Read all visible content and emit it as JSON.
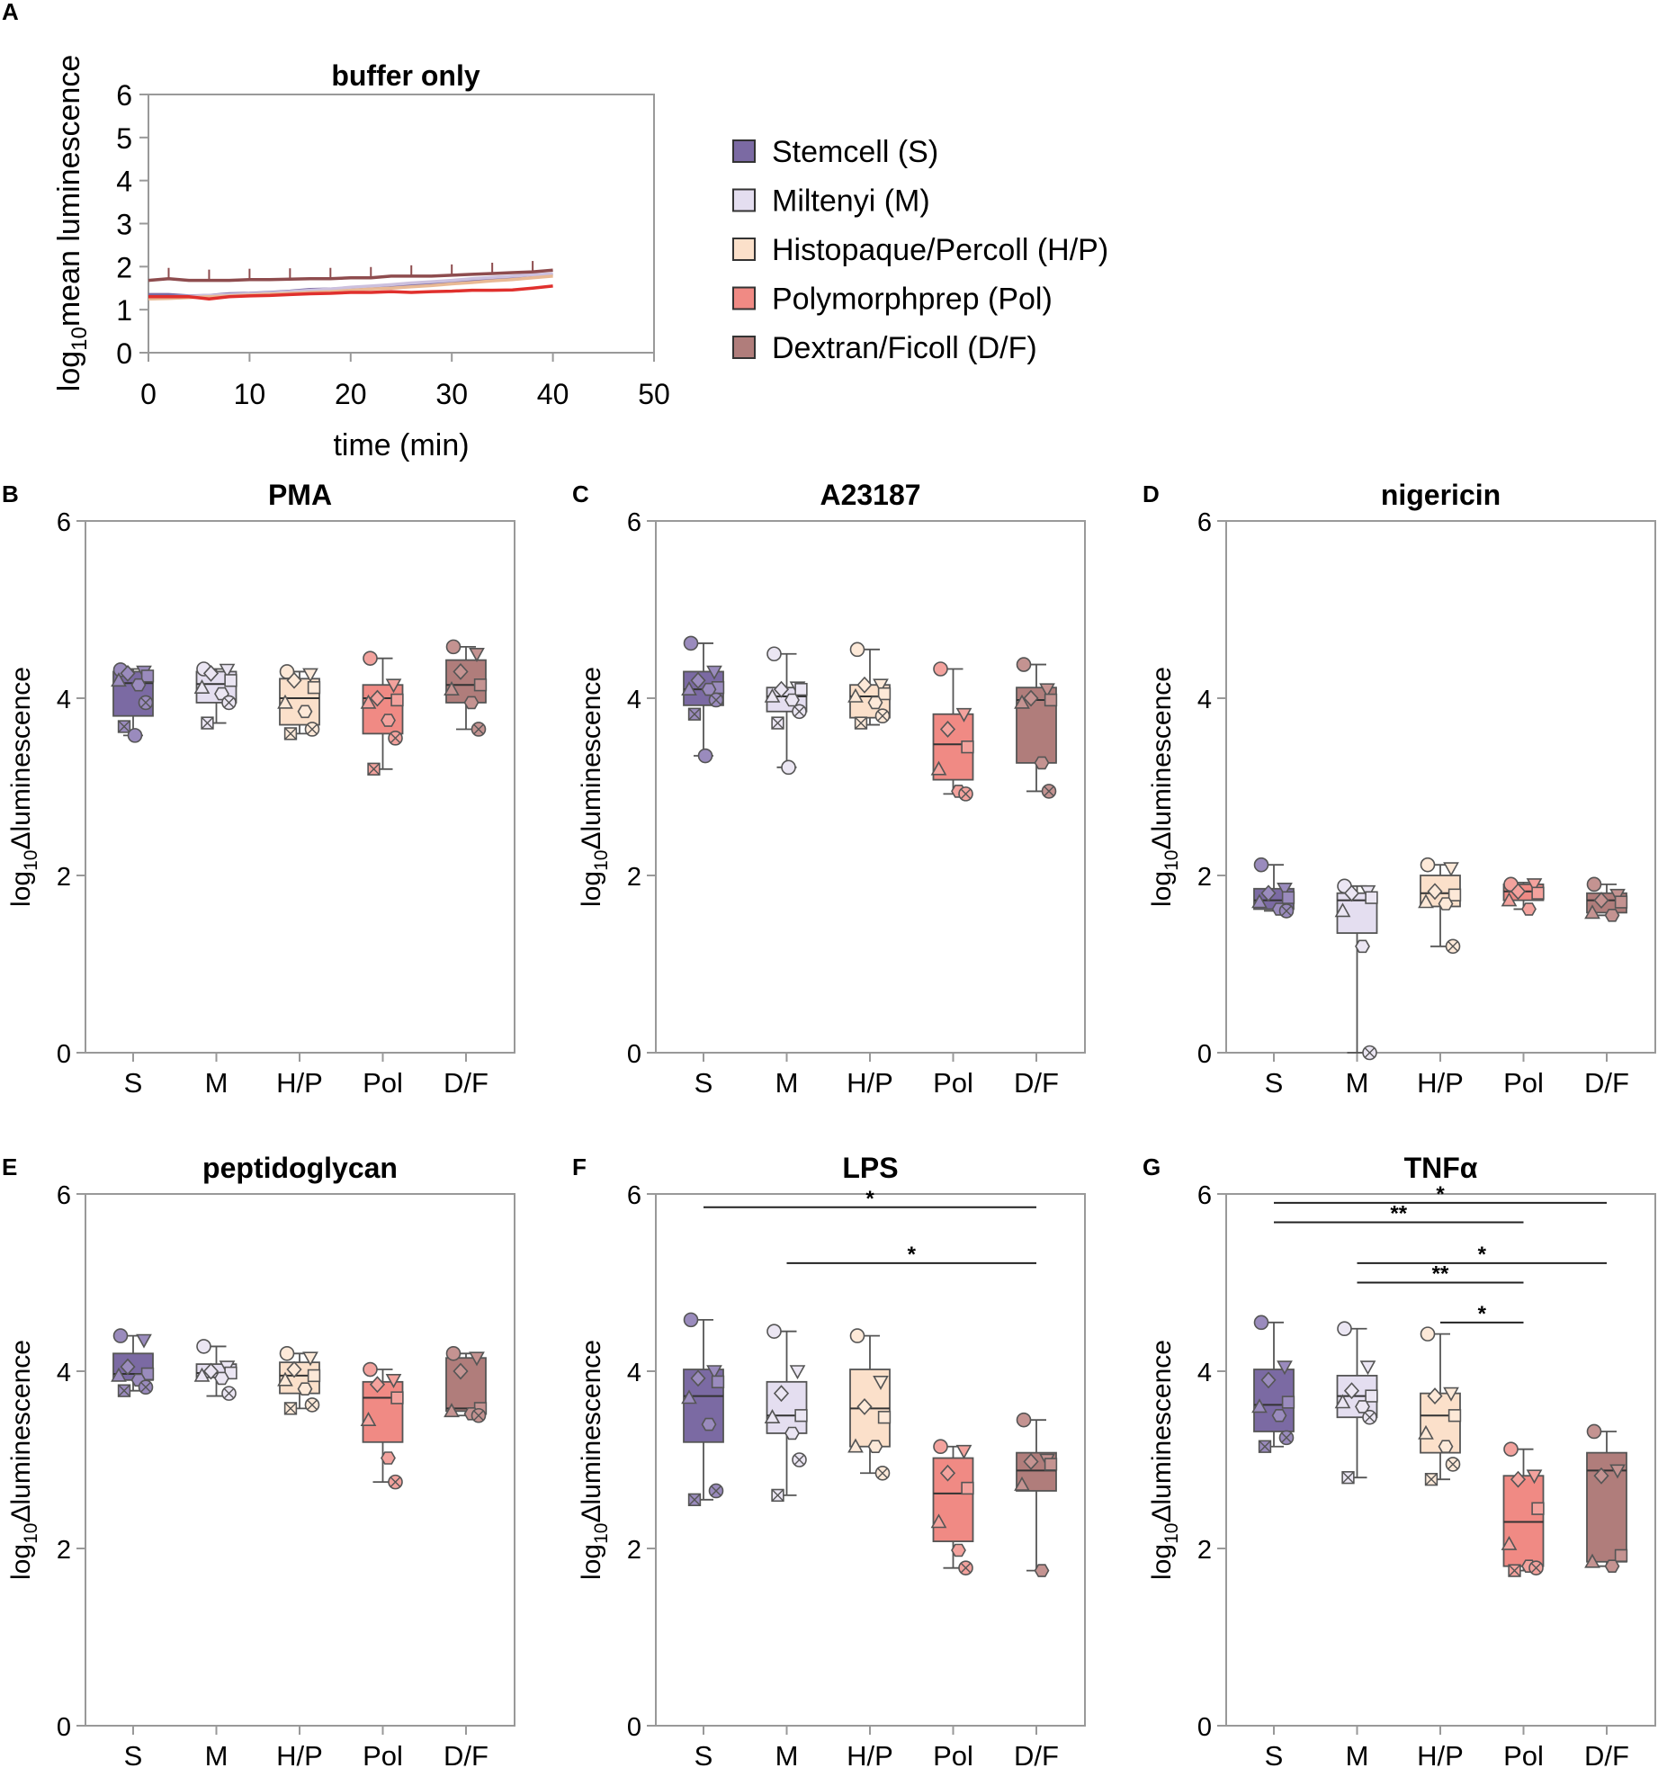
{
  "chart_data": [
    {
      "panel": "A",
      "type": "line",
      "title": "buffer only",
      "xlabel": "time (min)",
      "ylabel_pre": "log",
      "ylabel_sub": "10",
      "ylabel_post": "mean luminescence",
      "xlim": [
        0,
        50
      ],
      "ylim": [
        0,
        6
      ],
      "xticks": [
        0,
        10,
        20,
        30,
        40,
        50
      ],
      "yticks": [
        0,
        1,
        2,
        3,
        4,
        5,
        6
      ],
      "x": [
        0,
        2,
        4,
        6,
        8,
        10,
        12,
        14,
        16,
        18,
        20,
        22,
        24,
        26,
        28,
        30,
        32,
        34,
        36,
        38,
        40
      ],
      "series": [
        {
          "name": "Stemcell (S)",
          "color": "#7b6aa3",
          "values": [
            1.35,
            1.35,
            1.32,
            1.33,
            1.37,
            1.38,
            1.4,
            1.43,
            1.47,
            1.48,
            1.5,
            1.53,
            1.56,
            1.58,
            1.62,
            1.65,
            1.68,
            1.72,
            1.76,
            1.8,
            1.83
          ]
        },
        {
          "name": "Miltenyi (M)",
          "color": "#ccc0de",
          "values": [
            1.3,
            1.3,
            1.31,
            1.33,
            1.35,
            1.37,
            1.39,
            1.42,
            1.45,
            1.48,
            1.52,
            1.55,
            1.58,
            1.62,
            1.65,
            1.68,
            1.72,
            1.75,
            1.78,
            1.81,
            1.83
          ]
        },
        {
          "name": "Histopaque/Percoll (H/P)",
          "color": "#e9b994",
          "values": [
            1.25,
            1.26,
            1.28,
            1.3,
            1.32,
            1.34,
            1.36,
            1.38,
            1.4,
            1.42,
            1.45,
            1.48,
            1.5,
            1.53,
            1.56,
            1.6,
            1.63,
            1.67,
            1.7,
            1.74,
            1.78
          ]
        },
        {
          "name": "Polymorphprep (Pol)",
          "color": "#e0302d",
          "values": [
            1.3,
            1.3,
            1.3,
            1.25,
            1.3,
            1.32,
            1.33,
            1.35,
            1.37,
            1.38,
            1.4,
            1.4,
            1.42,
            1.4,
            1.42,
            1.43,
            1.45,
            1.45,
            1.46,
            1.5,
            1.55
          ]
        },
        {
          "name": "Dextran/Ficoll (D/F)",
          "color": "#8e4c4e",
          "values": [
            1.68,
            1.72,
            1.68,
            1.68,
            1.68,
            1.7,
            1.7,
            1.71,
            1.72,
            1.72,
            1.74,
            1.74,
            1.78,
            1.78,
            1.78,
            1.8,
            1.82,
            1.84,
            1.86,
            1.88,
            1.92
          ]
        }
      ]
    },
    {
      "panel": "B",
      "type": "box",
      "title": "PMA",
      "ylabel_pre": "log",
      "ylabel_sub": "10",
      "ylabel_post": "Δluminescence",
      "ylim": [
        0,
        6
      ],
      "yticks": [
        0,
        2,
        4,
        6
      ],
      "categories": [
        "S",
        "M",
        "H/P",
        "Pol",
        "D/F"
      ],
      "boxes": [
        {
          "min": 3.58,
          "q1": 3.8,
          "median": 4.17,
          "q3": 4.3,
          "max": 4.33,
          "points": [
            4.32,
            4.3,
            4.28,
            4.25,
            4.2,
            4.15,
            3.95,
            3.68,
            3.58
          ]
        },
        {
          "min": 3.72,
          "q1": 3.95,
          "median": 4.16,
          "q3": 4.3,
          "max": 4.33,
          "points": [
            4.33,
            4.32,
            4.28,
            4.2,
            4.12,
            4.05,
            3.95,
            3.72
          ]
        },
        {
          "min": 3.6,
          "q1": 3.7,
          "median": 4.0,
          "q3": 4.22,
          "max": 4.3,
          "points": [
            4.3,
            4.27,
            4.2,
            4.12,
            3.95,
            3.85,
            3.65,
            3.6
          ]
        },
        {
          "min": 3.2,
          "q1": 3.6,
          "median": 4.0,
          "q3": 4.15,
          "max": 4.45,
          "points": [
            4.45,
            4.15,
            4.0,
            3.98,
            3.95,
            3.75,
            3.55,
            3.2
          ]
        },
        {
          "min": 3.65,
          "q1": 3.95,
          "median": 4.15,
          "q3": 4.43,
          "max": 4.58,
          "points": [
            4.58,
            4.5,
            4.3,
            4.15,
            4.1,
            3.95,
            3.65
          ]
        }
      ],
      "significance": []
    },
    {
      "panel": "C",
      "type": "box",
      "title": "A23187",
      "ylabel_pre": "log",
      "ylabel_sub": "10",
      "ylabel_post": "Δluminescence",
      "ylim": [
        0,
        6
      ],
      "yticks": [
        0,
        2,
        4,
        6
      ],
      "categories": [
        "S",
        "M",
        "H/P",
        "Pol",
        "D/F"
      ],
      "boxes": [
        {
          "min": 3.35,
          "q1": 3.92,
          "median": 4.1,
          "q3": 4.3,
          "max": 4.62,
          "points": [
            4.62,
            4.3,
            4.2,
            4.12,
            4.1,
            4.1,
            3.98,
            3.82,
            3.35
          ]
        },
        {
          "min": 3.22,
          "q1": 3.85,
          "median": 4.02,
          "q3": 4.12,
          "max": 4.5,
          "points": [
            4.5,
            4.12,
            4.1,
            4.1,
            4.02,
            3.98,
            3.85,
            3.72,
            3.22
          ]
        },
        {
          "min": 3.7,
          "q1": 3.78,
          "median": 4.02,
          "q3": 4.15,
          "max": 4.55,
          "points": [
            4.55,
            4.15,
            4.15,
            4.05,
            4.02,
            3.95,
            3.8,
            3.72
          ]
        },
        {
          "min": 2.92,
          "q1": 3.08,
          "median": 3.48,
          "q3": 3.82,
          "max": 4.33,
          "points": [
            4.33,
            3.82,
            3.65,
            3.45,
            3.2,
            2.95,
            2.92
          ]
        },
        {
          "min": 2.95,
          "q1": 3.27,
          "median": 3.98,
          "q3": 4.12,
          "max": 4.38,
          "points": [
            4.38,
            4.1,
            4.0,
            3.98,
            3.95,
            3.27,
            2.95
          ]
        }
      ],
      "significance": []
    },
    {
      "panel": "D",
      "type": "box",
      "title": "nigericin",
      "ylabel_pre": "log",
      "ylabel_sub": "10",
      "ylabel_post": "Δluminescence",
      "ylim": [
        0,
        6
      ],
      "yticks": [
        0,
        2,
        4,
        6
      ],
      "categories": [
        "S",
        "M",
        "H/P",
        "Pol",
        "D/F"
      ],
      "boxes": [
        {
          "min": 1.6,
          "q1": 1.62,
          "median": 1.72,
          "q3": 1.85,
          "max": 2.12,
          "points": [
            2.12,
            1.85,
            1.8,
            1.75,
            1.7,
            1.62,
            1.6
          ]
        },
        {
          "min": 0.0,
          "q1": 1.35,
          "median": 1.72,
          "q3": 1.8,
          "max": 1.88,
          "points": [
            1.88,
            1.82,
            1.8,
            1.75,
            1.6,
            1.2,
            0.0
          ]
        },
        {
          "min": 1.2,
          "q1": 1.65,
          "median": 1.8,
          "q3": 2.0,
          "max": 2.12,
          "points": [
            2.12,
            2.08,
            1.82,
            1.78,
            1.7,
            1.68,
            1.2
          ]
        },
        {
          "min": 1.62,
          "q1": 1.72,
          "median": 1.82,
          "q3": 1.9,
          "max": 1.92,
          "points": [
            1.9,
            1.9,
            1.82,
            1.8,
            1.72,
            1.62
          ]
        },
        {
          "min": 1.55,
          "q1": 1.58,
          "median": 1.72,
          "q3": 1.8,
          "max": 1.9,
          "points": [
            1.9,
            1.78,
            1.72,
            1.7,
            1.58,
            1.55
          ]
        }
      ],
      "significance": []
    },
    {
      "panel": "E",
      "type": "box",
      "title": "peptidoglycan",
      "ylabel_pre": "log",
      "ylabel_sub": "10",
      "ylabel_post": "Δluminescence",
      "ylim": [
        0,
        6
      ],
      "yticks": [
        0,
        2,
        4,
        6
      ],
      "categories": [
        "S",
        "M",
        "H/P",
        "Pol",
        "D/F"
      ],
      "boxes": [
        {
          "min": 3.78,
          "q1": 3.9,
          "median": 3.97,
          "q3": 4.2,
          "max": 4.4,
          "points": [
            4.4,
            4.35,
            4.05,
            3.97,
            3.95,
            3.9,
            3.82,
            3.78
          ]
        },
        {
          "min": 3.72,
          "q1": 3.93,
          "median": 3.98,
          "q3": 4.08,
          "max": 4.28,
          "points": [
            4.28,
            4.05,
            4.0,
            3.98,
            3.95,
            3.92,
            3.75
          ]
        },
        {
          "min": 3.58,
          "q1": 3.75,
          "median": 3.95,
          "q3": 4.1,
          "max": 4.2,
          "points": [
            4.2,
            4.15,
            4.02,
            3.95,
            3.9,
            3.8,
            3.62,
            3.58
          ]
        },
        {
          "min": 2.75,
          "q1": 3.2,
          "median": 3.7,
          "q3": 3.88,
          "max": 4.02,
          "points": [
            4.02,
            3.9,
            3.85,
            3.7,
            3.45,
            3.02,
            2.75
          ]
        },
        {
          "min": 3.5,
          "q1": 3.55,
          "median": 3.58,
          "q3": 4.15,
          "max": 4.2,
          "points": [
            4.2,
            4.15,
            4.0,
            3.58,
            3.55,
            3.52,
            3.5
          ]
        }
      ],
      "significance": []
    },
    {
      "panel": "F",
      "type": "box",
      "title": "LPS",
      "ylabel_pre": "log",
      "ylabel_sub": "10",
      "ylabel_post": "Δluminescence",
      "ylim": [
        0,
        6
      ],
      "yticks": [
        0,
        2,
        4,
        6
      ],
      "categories": [
        "S",
        "M",
        "H/P",
        "Pol",
        "D/F"
      ],
      "boxes": [
        {
          "min": 2.55,
          "q1": 3.2,
          "median": 3.72,
          "q3": 4.02,
          "max": 4.58,
          "points": [
            4.58,
            4.0,
            3.92,
            3.88,
            3.7,
            3.4,
            2.65,
            2.55
          ]
        },
        {
          "min": 2.6,
          "q1": 3.3,
          "median": 3.5,
          "q3": 3.88,
          "max": 4.45,
          "points": [
            4.45,
            4.0,
            3.75,
            3.5,
            3.48,
            3.3,
            3.0,
            2.6
          ]
        },
        {
          "min": 2.85,
          "q1": 3.15,
          "median": 3.58,
          "q3": 4.02,
          "max": 4.4,
          "points": [
            4.4,
            3.88,
            3.6,
            3.48,
            3.15,
            3.15,
            2.85
          ]
        },
        {
          "min": 1.78,
          "q1": 2.08,
          "median": 2.62,
          "q3": 3.02,
          "max": 3.15,
          "points": [
            3.15,
            3.1,
            2.85,
            2.68,
            2.3,
            1.98,
            1.78
          ]
        },
        {
          "min": 1.75,
          "q1": 2.65,
          "median": 2.88,
          "q3": 3.08,
          "max": 3.45,
          "points": [
            3.45,
            3.0,
            2.98,
            2.95,
            2.72,
            1.75
          ]
        }
      ],
      "significance": [
        {
          "from": 0,
          "to": 4,
          "y": 5.85,
          "label": "*"
        },
        {
          "from": 1,
          "to": 4,
          "y": 5.22,
          "label": "*"
        }
      ]
    },
    {
      "panel": "G",
      "type": "box",
      "title": "TNFα",
      "ylabel_pre": "log",
      "ylabel_sub": "10",
      "ylabel_post": "Δluminescence",
      "ylim": [
        0,
        6
      ],
      "yticks": [
        0,
        2,
        4,
        6
      ],
      "categories": [
        "S",
        "M",
        "H/P",
        "Pol",
        "D/F"
      ],
      "boxes": [
        {
          "min": 3.15,
          "q1": 3.32,
          "median": 3.62,
          "q3": 4.02,
          "max": 4.55,
          "points": [
            4.55,
            4.05,
            3.9,
            3.65,
            3.6,
            3.5,
            3.25,
            3.15
          ]
        },
        {
          "min": 2.8,
          "q1": 3.48,
          "median": 3.72,
          "q3": 3.95,
          "max": 4.48,
          "points": [
            4.48,
            4.05,
            3.78,
            3.72,
            3.65,
            3.6,
            3.48,
            2.8
          ]
        },
        {
          "min": 2.78,
          "q1": 3.08,
          "median": 3.5,
          "q3": 3.75,
          "max": 4.42,
          "points": [
            4.42,
            3.75,
            3.72,
            3.5,
            3.3,
            3.15,
            2.95,
            2.78
          ]
        },
        {
          "min": 1.75,
          "q1": 1.8,
          "median": 2.3,
          "q3": 2.82,
          "max": 3.12,
          "points": [
            3.12,
            2.82,
            2.78,
            2.45,
            2.05,
            1.8,
            1.78,
            1.75
          ]
        },
        {
          "min": 1.8,
          "q1": 1.85,
          "median": 2.88,
          "q3": 3.08,
          "max": 3.32,
          "points": [
            3.32,
            2.88,
            2.82,
            1.92,
            1.85,
            1.8
          ]
        }
      ],
      "significance": [
        {
          "from": 0,
          "to": 4,
          "y": 5.9,
          "label": "*"
        },
        {
          "from": 0,
          "to": 3,
          "y": 5.68,
          "label": "**"
        },
        {
          "from": 1,
          "to": 4,
          "y": 5.22,
          "label": "*"
        },
        {
          "from": 1,
          "to": 3,
          "y": 5.0,
          "label": "**"
        },
        {
          "from": 2,
          "to": 3,
          "y": 4.55,
          "label": "*"
        }
      ]
    }
  ],
  "legend": {
    "items": [
      {
        "label": "Stemcell (S)",
        "color": "#7b6aa3"
      },
      {
        "label": "Miltenyi (M)",
        "color": "#e4def0"
      },
      {
        "label": "Histopaque/Percoll (H/P)",
        "color": "#fbe0ca"
      },
      {
        "label": "Polymorphprep (Pol)",
        "color": "#f08a84"
      },
      {
        "label": "Dextran/Ficoll (D/F)",
        "color": "#b07d7b"
      }
    ]
  },
  "colors": {
    "box_fills": [
      "#7b6aa3",
      "#e4def0",
      "#fbe0ca",
      "#f08a84",
      "#b07d7b"
    ],
    "marker_fills": [
      "#9a8bbd",
      "#ebe6f3",
      "#fde9d8",
      "#f3a29d",
      "#c49391"
    ]
  },
  "markers": [
    "circle",
    "triangle-down",
    "diamond",
    "square",
    "triangle-up",
    "hexagon",
    "circle-x",
    "square-x",
    "circle",
    "diamond"
  ]
}
